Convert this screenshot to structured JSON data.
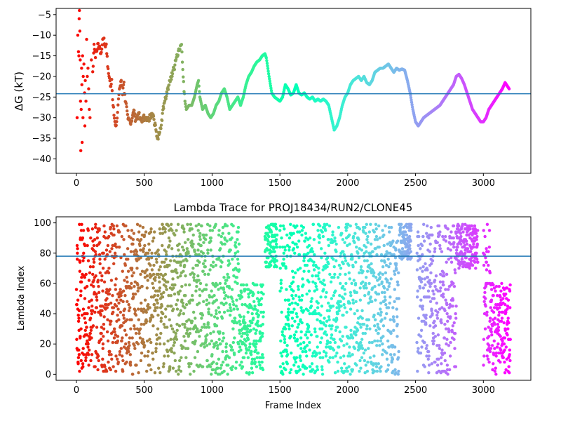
{
  "chart_data": [
    {
      "type": "scatter",
      "title": "",
      "xlabel": "",
      "ylabel": "ΔG (kT)",
      "xlim": [
        -150,
        3350
      ],
      "ylim": [
        -43.5,
        -3.5
      ],
      "xticks": [
        0,
        500,
        1000,
        1500,
        2000,
        2500,
        3000
      ],
      "yticks": [
        -40,
        -35,
        -30,
        -25,
        -20,
        -15,
        -10,
        -5
      ],
      "hline": -24.2,
      "hline_color": "#1f77b4",
      "colormap": "rainbow",
      "x_max_frame": 3190,
      "points": [
        [
          5,
          -30
        ],
        [
          10,
          -10
        ],
        [
          15,
          -14
        ],
        [
          18,
          -15
        ],
        [
          20,
          -6
        ],
        [
          22,
          -4
        ],
        [
          25,
          -9
        ],
        [
          28,
          -16
        ],
        [
          30,
          -26
        ],
        [
          32,
          -38
        ],
        [
          35,
          -28
        ],
        [
          38,
          -18
        ],
        [
          40,
          -22
        ],
        [
          42,
          -36
        ],
        [
          45,
          -15
        ],
        [
          48,
          -30
        ],
        [
          50,
          -20
        ],
        [
          55,
          -17
        ],
        [
          60,
          -24
        ],
        [
          62,
          -32
        ],
        [
          65,
          -21
        ],
        [
          70,
          -26
        ],
        [
          75,
          -11
        ],
        [
          80,
          -20
        ],
        [
          85,
          -18
        ],
        [
          90,
          -23
        ],
        [
          95,
          -28
        ],
        [
          100,
          -30
        ],
        [
          110,
          -16
        ],
        [
          120,
          -19
        ],
        [
          130,
          -13
        ],
        [
          140,
          -15
        ],
        [
          150,
          -14
        ],
        [
          160,
          -12
        ],
        [
          170,
          -13
        ],
        [
          180,
          -15
        ],
        [
          190,
          -12
        ],
        [
          200,
          -10
        ],
        [
          210,
          -13
        ],
        [
          220,
          -12
        ],
        [
          230,
          -17
        ],
        [
          240,
          -20
        ],
        [
          250,
          -22
        ],
        [
          260,
          -21
        ],
        [
          270,
          -27
        ],
        [
          280,
          -30
        ],
        [
          290,
          -32
        ],
        [
          300,
          -30
        ],
        [
          310,
          -26
        ],
        [
          320,
          -22
        ],
        [
          330,
          -21
        ],
        [
          340,
          -24
        ],
        [
          350,
          -22
        ],
        [
          360,
          -26
        ],
        [
          370,
          -28
        ],
        [
          380,
          -30
        ],
        [
          400,
          -32
        ],
        [
          420,
          -28
        ],
        [
          440,
          -31
        ],
        [
          460,
          -29
        ],
        [
          480,
          -31
        ],
        [
          500,
          -30
        ],
        [
          520,
          -31
        ],
        [
          540,
          -30
        ],
        [
          560,
          -29
        ],
        [
          580,
          -32
        ],
        [
          600,
          -35
        ],
        [
          620,
          -33
        ],
        [
          640,
          -28
        ],
        [
          660,
          -25
        ],
        [
          680,
          -22
        ],
        [
          700,
          -20
        ],
        [
          720,
          -18
        ],
        [
          740,
          -15
        ],
        [
          760,
          -13
        ],
        [
          775,
          -12
        ],
        [
          790,
          -22
        ],
        [
          800,
          -26
        ],
        [
          810,
          -28
        ],
        [
          830,
          -27
        ],
        [
          850,
          -27
        ],
        [
          870,
          -25
        ],
        [
          890,
          -22
        ],
        [
          900,
          -21
        ],
        [
          910,
          -25
        ],
        [
          930,
          -28
        ],
        [
          950,
          -27
        ],
        [
          970,
          -29
        ],
        [
          990,
          -30
        ],
        [
          1010,
          -29
        ],
        [
          1030,
          -27
        ],
        [
          1050,
          -26
        ],
        [
          1070,
          -24
        ],
        [
          1090,
          -23
        ],
        [
          1110,
          -25
        ],
        [
          1130,
          -28
        ],
        [
          1150,
          -27
        ],
        [
          1170,
          -26
        ],
        [
          1190,
          -25
        ],
        [
          1210,
          -27
        ],
        [
          1230,
          -25
        ],
        [
          1250,
          -22
        ],
        [
          1270,
          -20
        ],
        [
          1290,
          -19
        ],
        [
          1310,
          -17.5
        ],
        [
          1330,
          -16.5
        ],
        [
          1350,
          -16
        ],
        [
          1370,
          -15
        ],
        [
          1390,
          -14.5
        ],
        [
          1400,
          -15.5
        ],
        [
          1420,
          -20
        ],
        [
          1440,
          -24
        ],
        [
          1460,
          -25
        ],
        [
          1480,
          -25.5
        ],
        [
          1500,
          -26
        ],
        [
          1520,
          -25
        ],
        [
          1540,
          -22
        ],
        [
          1560,
          -23
        ],
        [
          1580,
          -24.5
        ],
        [
          1600,
          -24
        ],
        [
          1620,
          -22
        ],
        [
          1640,
          -24
        ],
        [
          1660,
          -24.5
        ],
        [
          1680,
          -24
        ],
        [
          1700,
          -25
        ],
        [
          1720,
          -25.5
        ],
        [
          1740,
          -25
        ],
        [
          1760,
          -26
        ],
        [
          1780,
          -25.5
        ],
        [
          1800,
          -26
        ],
        [
          1820,
          -25.5
        ],
        [
          1840,
          -26
        ],
        [
          1860,
          -27
        ],
        [
          1880,
          -30
        ],
        [
          1900,
          -33
        ],
        [
          1920,
          -32
        ],
        [
          1940,
          -30
        ],
        [
          1960,
          -27
        ],
        [
          1980,
          -25
        ],
        [
          2000,
          -24
        ],
        [
          2020,
          -22
        ],
        [
          2040,
          -21
        ],
        [
          2060,
          -20.5
        ],
        [
          2080,
          -20
        ],
        [
          2100,
          -21
        ],
        [
          2120,
          -20
        ],
        [
          2140,
          -21.5
        ],
        [
          2160,
          -22
        ],
        [
          2180,
          -21
        ],
        [
          2200,
          -19
        ],
        [
          2220,
          -18.5
        ],
        [
          2240,
          -18
        ],
        [
          2260,
          -18
        ],
        [
          2280,
          -17.5
        ],
        [
          2300,
          -17
        ],
        [
          2320,
          -18
        ],
        [
          2340,
          -19
        ],
        [
          2360,
          -18
        ],
        [
          2380,
          -18.5
        ],
        [
          2400,
          -18.2
        ],
        [
          2420,
          -18.5
        ],
        [
          2440,
          -21
        ],
        [
          2460,
          -24
        ],
        [
          2480,
          -28
        ],
        [
          2500,
          -31
        ],
        [
          2520,
          -32
        ],
        [
          2540,
          -31
        ],
        [
          2560,
          -30
        ],
        [
          2580,
          -29.5
        ],
        [
          2600,
          -29
        ],
        [
          2620,
          -28.5
        ],
        [
          2640,
          -28
        ],
        [
          2660,
          -27.5
        ],
        [
          2680,
          -27
        ],
        [
          2700,
          -26
        ],
        [
          2720,
          -25
        ],
        [
          2740,
          -24
        ],
        [
          2760,
          -23
        ],
        [
          2780,
          -22
        ],
        [
          2800,
          -20
        ],
        [
          2820,
          -19.5
        ],
        [
          2840,
          -20.5
        ],
        [
          2860,
          -22
        ],
        [
          2880,
          -24
        ],
        [
          2900,
          -26
        ],
        [
          2920,
          -28
        ],
        [
          2940,
          -29
        ],
        [
          2960,
          -30
        ],
        [
          2980,
          -31
        ],
        [
          3000,
          -31
        ],
        [
          3020,
          -30
        ],
        [
          3040,
          -28
        ],
        [
          3060,
          -27
        ],
        [
          3080,
          -26
        ],
        [
          3100,
          -25
        ],
        [
          3120,
          -24
        ],
        [
          3140,
          -23
        ],
        [
          3160,
          -21.5
        ],
        [
          3180,
          -22.5
        ],
        [
          3190,
          -23
        ]
      ]
    },
    {
      "type": "scatter",
      "title": "Lambda Trace for PROJ18434/RUN2/CLONE45",
      "xlabel": "Frame Index",
      "ylabel": "Lambda Index",
      "xlim": [
        -150,
        3350
      ],
      "ylim": [
        -4,
        104
      ],
      "xticks": [
        0,
        500,
        1000,
        1500,
        2000,
        2500,
        3000
      ],
      "yticks": [
        0,
        20,
        40,
        60,
        80,
        100
      ],
      "hline": 78,
      "hline_color": "#1f77b4",
      "colormap": "rainbow",
      "x_max_frame": 3190,
      "value_range": [
        0,
        99
      ],
      "point_count": 3200
    }
  ]
}
